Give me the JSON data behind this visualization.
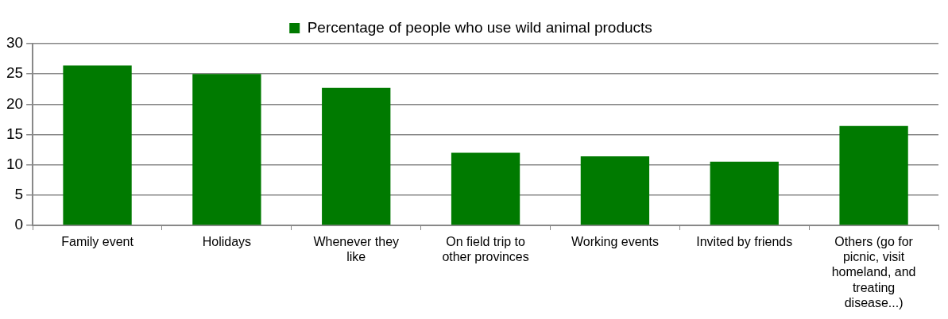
{
  "chart_data": {
    "type": "bar",
    "categories": [
      "Family event",
      "Holidays",
      "Whenever they like",
      "On field trip to other provinces",
      "Working events",
      "Invited by friends",
      "Others (go for picnic, visit homeland, and treating disease...)"
    ],
    "series": [
      {
        "name": "Percentage of people who use wild animal products",
        "color": "#007a00",
        "values": [
          26.4,
          25.0,
          22.7,
          12.0,
          11.4,
          10.5,
          16.4
        ]
      }
    ],
    "ylim": [
      0,
      30
    ],
    "yticks": [
      0,
      5,
      10,
      15,
      20,
      25,
      30
    ],
    "grid": "y",
    "legend": "top"
  }
}
